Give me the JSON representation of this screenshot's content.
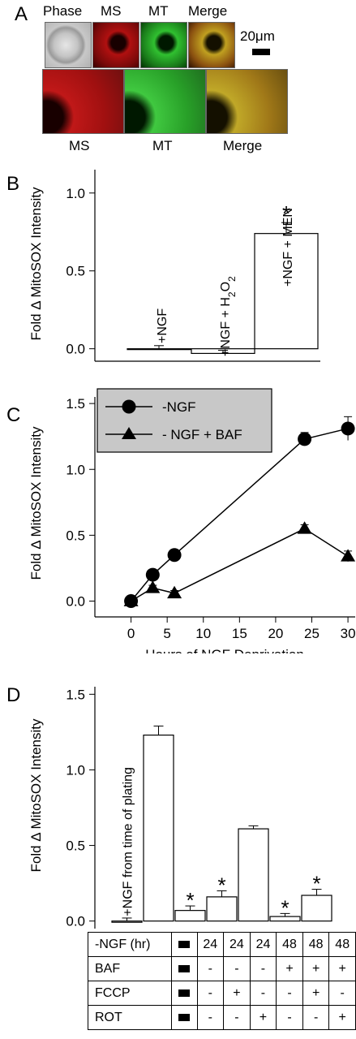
{
  "panel_a": {
    "letter": "A",
    "top_labels": [
      "Phase",
      "MS",
      "MT",
      "Merge"
    ],
    "scale_bar_label": "20μm",
    "bottom_labels": [
      "MS",
      "MT",
      "Merge"
    ],
    "colors": {
      "ms_red": "#c81414",
      "mt_green": "#28b428",
      "merge_yellow": "#b8a020",
      "phase_gray": "#b8b8b8"
    }
  },
  "panel_b": {
    "letter": "B"
  },
  "panel_c": {
    "letter": "C"
  },
  "panel_d": {
    "letter": "D"
  },
  "chart_data": [
    {
      "panel": "B",
      "type": "bar",
      "ylabel": "Fold Δ MitoSOX Intensity",
      "ylim": [
        -0.08,
        1.15
      ],
      "yticks": [
        0.0,
        0.5,
        1.0
      ],
      "ytick_labels": [
        "0.0",
        "0.5",
        "1.0"
      ],
      "bars": [
        {
          "label": "+NGF",
          "value": 0.0,
          "error": 0.02,
          "significant": false
        },
        {
          "label": "+NGF + H2O2",
          "value": -0.03,
          "error": 0.02,
          "significant": false
        },
        {
          "label": "+NGF + MEN",
          "value": 0.74,
          "error": 0.07,
          "significant": true
        }
      ],
      "significance_marker": "*"
    },
    {
      "panel": "C",
      "type": "line",
      "ylabel": "Fold Δ MitoSOX Intensity",
      "xlabel": "Hours of NGF Deprivation",
      "xlim": [
        -5,
        31
      ],
      "ylim": [
        -0.12,
        1.55
      ],
      "xticks": [
        0,
        5,
        10,
        15,
        20,
        25,
        30
      ],
      "yticks": [
        0.0,
        0.5,
        1.0,
        1.5
      ],
      "ytick_labels": [
        "0.0",
        "0.5",
        "1.0",
        "1.5"
      ],
      "legend_placement": "top-left",
      "legend_bg": "#c8c8c8",
      "series": [
        {
          "name": "-NGF",
          "marker": "circle",
          "x": [
            0,
            3,
            6,
            24,
            30
          ],
          "y": [
            0.0,
            0.2,
            0.35,
            1.23,
            1.31
          ],
          "err": [
            0.02,
            0.03,
            0.03,
            0.05,
            0.09
          ]
        },
        {
          "name": "- NGF + BAF",
          "marker": "triangle",
          "x": [
            0,
            3,
            6,
            24,
            30
          ],
          "y": [
            0.0,
            0.1,
            0.06,
            0.55,
            0.34
          ],
          "err": [
            0.02,
            0.02,
            0.02,
            0.03,
            0.04
          ]
        }
      ]
    },
    {
      "panel": "D",
      "type": "bar",
      "ylabel": "Fold Δ MitoSOX Intensity",
      "ylim": [
        -0.05,
        1.55
      ],
      "yticks": [
        0.0,
        0.5,
        1.0,
        1.5
      ],
      "ytick_labels": [
        "0.0",
        "0.5",
        "1.0",
        "1.5"
      ],
      "bars": [
        {
          "value": 0.0,
          "error": 0.02,
          "significant": false,
          "label": "+NGF from time of plating"
        },
        {
          "value": 1.23,
          "error": 0.06,
          "significant": false,
          "label": ""
        },
        {
          "value": 0.07,
          "error": 0.03,
          "significant": true,
          "label": ""
        },
        {
          "value": 0.16,
          "error": 0.04,
          "significant": true,
          "label": ""
        },
        {
          "value": 0.61,
          "error": 0.02,
          "significant": false,
          "label": ""
        },
        {
          "value": 0.03,
          "error": 0.02,
          "significant": true,
          "label": ""
        },
        {
          "value": 0.17,
          "error": 0.04,
          "significant": true,
          "label": ""
        }
      ],
      "significance_marker": "*",
      "table": {
        "rows": [
          {
            "label": "-NGF (hr)",
            "cells": [
              "■",
              "24",
              "24",
              "24",
              "48",
              "48",
              "48"
            ]
          },
          {
            "label": "BAF",
            "cells": [
              "■",
              "-",
              "-",
              "-",
              "+",
              "+",
              "+"
            ]
          },
          {
            "label": "FCCP",
            "cells": [
              "■",
              "-",
              "+",
              "-",
              "-",
              "+",
              "-"
            ]
          },
          {
            "label": "ROT",
            "cells": [
              "■",
              "-",
              "-",
              "+",
              "-",
              "-",
              "+"
            ]
          }
        ]
      }
    }
  ]
}
